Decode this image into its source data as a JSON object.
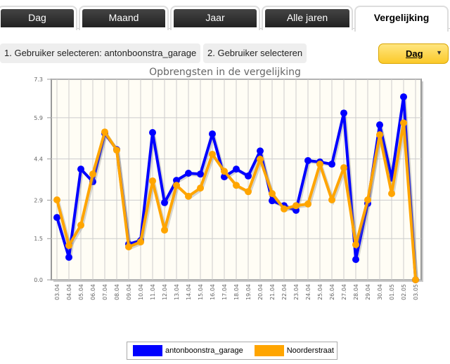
{
  "tabs": [
    {
      "label": "Dag"
    },
    {
      "label": "Maand"
    },
    {
      "label": "Jaar"
    },
    {
      "label": "Alle jaren"
    },
    {
      "label": "Vergelijking",
      "active": true
    }
  ],
  "selectors": {
    "user1": "1. Gebruiker selecteren: antonboonstra_garage",
    "user2": "2. Gebruiker selecteren"
  },
  "period_dropdown": {
    "value": "Dag",
    "icon": "caret-down-icon"
  },
  "chart_data": {
    "type": "line",
    "title": "Opbrengsten in de vergelijking",
    "categories": [
      "03.04",
      "04.04",
      "05.04",
      "06.04",
      "07.04",
      "08.04",
      "09.04",
      "10.04",
      "11.04",
      "12.04",
      "13.04",
      "14.04",
      "15.04",
      "16.04",
      "17.04",
      "18.04",
      "19.04",
      "20.04",
      "21.04",
      "22.04",
      "23.04",
      "24.04",
      "25.04",
      "26.04",
      "27.04",
      "28.04",
      "29.04",
      "30.04",
      "01.05",
      "02.05",
      "03.05"
    ],
    "yticks": [
      "0.0",
      "1.5",
      "2.9",
      "4.4",
      "5.9",
      "7.3"
    ],
    "ylim": [
      0,
      7.3
    ],
    "grid": true,
    "legend": "bottom",
    "series": [
      {
        "name": "antonboonstra_garage",
        "color": "#0000ff",
        "values": [
          2.27,
          0.82,
          4.03,
          3.57,
          5.33,
          4.74,
          1.3,
          1.43,
          5.36,
          2.81,
          3.62,
          3.88,
          3.85,
          5.31,
          3.75,
          4.03,
          3.78,
          4.69,
          2.88,
          2.7,
          2.53,
          4.34,
          4.29,
          4.21,
          6.07,
          0.74,
          2.78,
          5.64,
          3.7,
          6.66,
          0
        ]
      },
      {
        "name": "Noorderstraat",
        "color": "#ffa500",
        "values": [
          2.91,
          1.25,
          1.99,
          3.85,
          5.38,
          4.72,
          1.2,
          1.38,
          3.6,
          1.81,
          3.44,
          3.04,
          3.34,
          4.57,
          3.95,
          3.44,
          3.21,
          4.39,
          3.14,
          2.58,
          2.7,
          2.76,
          4.21,
          2.91,
          4.08,
          1.28,
          2.91,
          5.28,
          3.14,
          5.71,
          0
        ]
      }
    ]
  }
}
